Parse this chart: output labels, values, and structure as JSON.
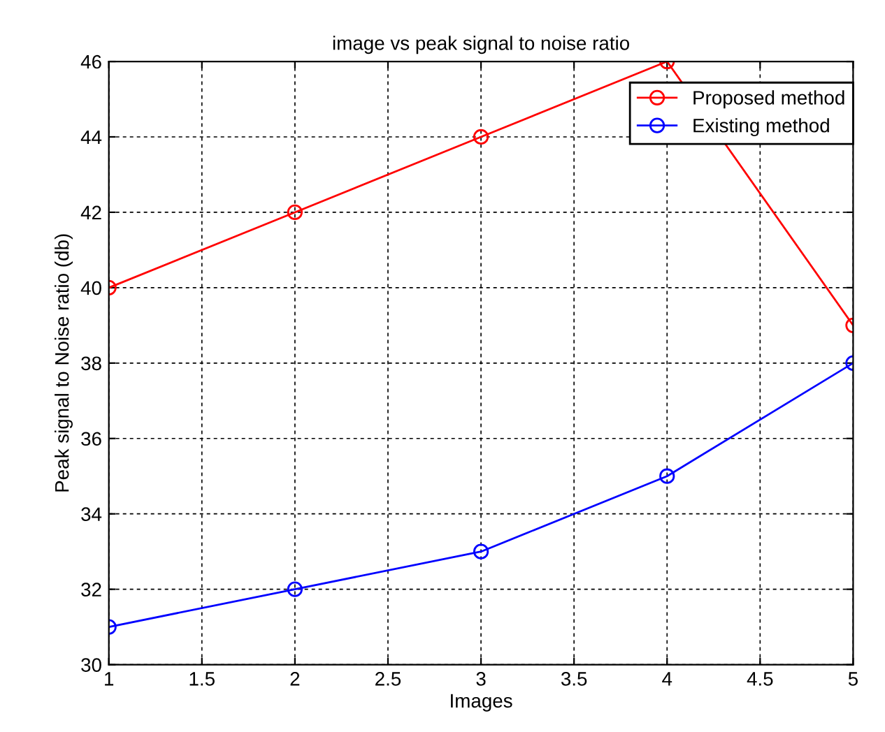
{
  "chart_data": {
    "type": "line",
    "title": "image vs peak signal to noise ratio",
    "xlabel": "Images",
    "ylabel": "Peak signal to Noise ratio (db)",
    "x": [
      1,
      2,
      3,
      4,
      5
    ],
    "series": [
      {
        "name": "Proposed method",
        "color": "#ff0000",
        "values": [
          40,
          42,
          44,
          46,
          39
        ]
      },
      {
        "name": "Existing method",
        "color": "#0000ff",
        "values": [
          31,
          32,
          33,
          35,
          38
        ]
      }
    ],
    "xlim": [
      1,
      5
    ],
    "xticks": [
      1,
      1.5,
      2,
      2.5,
      3,
      3.5,
      4,
      4.5,
      5
    ],
    "ylim": [
      30,
      46
    ],
    "yticks": [
      30,
      32,
      34,
      36,
      38,
      40,
      42,
      44,
      46
    ],
    "grid": true,
    "legend": "top right",
    "marker": "circle",
    "line_style": "solid"
  }
}
